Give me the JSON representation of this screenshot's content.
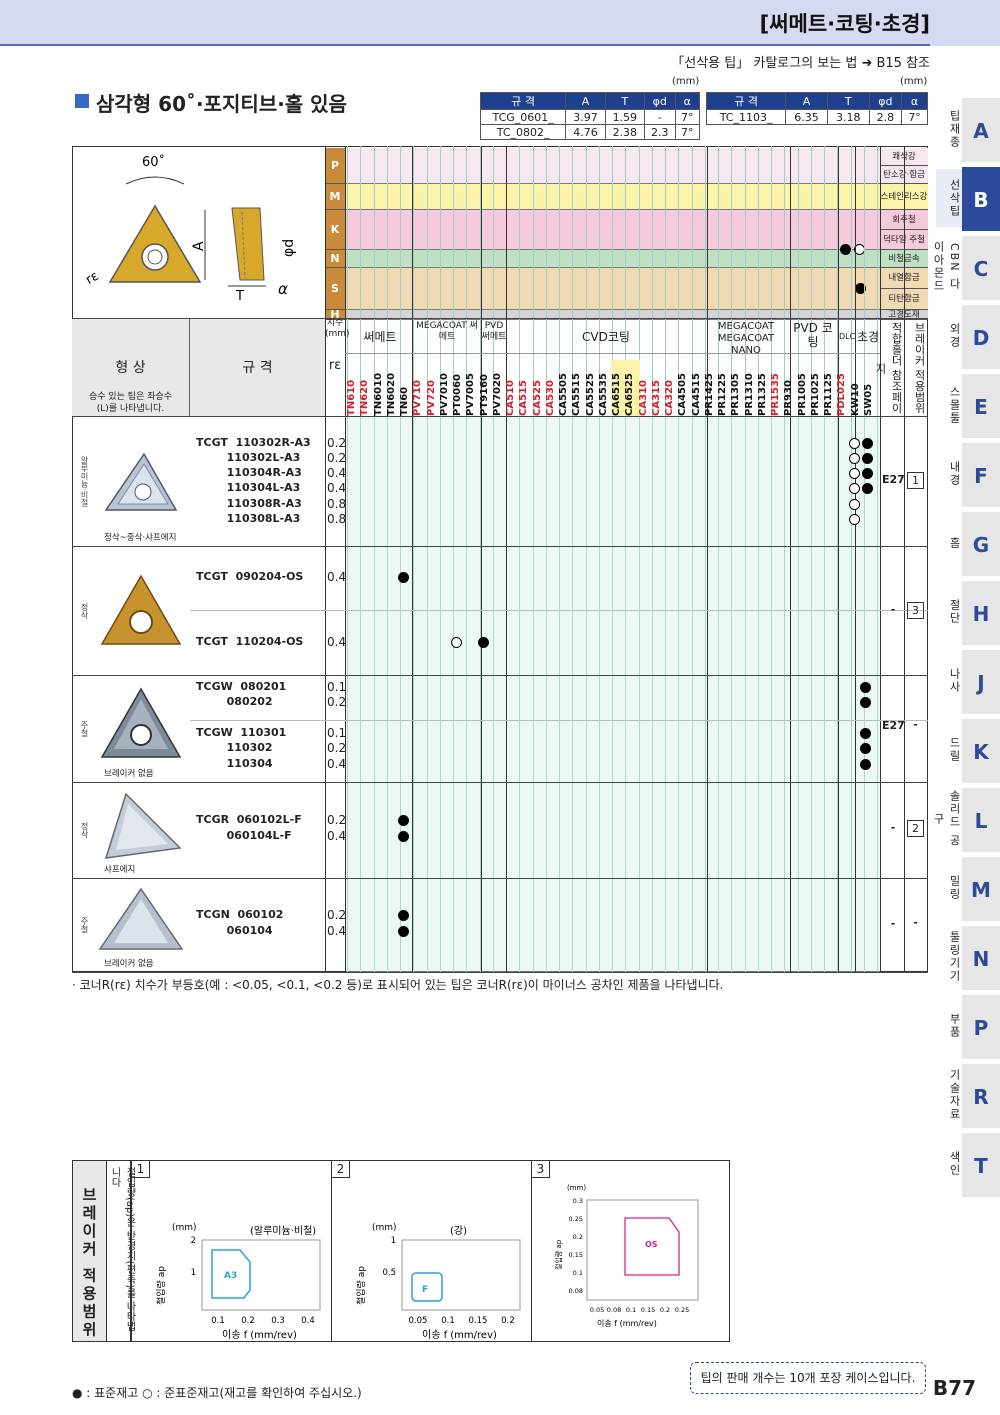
{
  "header": {
    "section": "[써메트·코팅·초경]",
    "ref_note": "「선삭용 팁」 카탈로그의 보는 법 ➜ B15 참조"
  },
  "title": "삼각형 60˚·포지티브·홀 있음",
  "units": "(mm)",
  "spec_headers": [
    "규 격",
    "A",
    "T",
    "φd",
    "α"
  ],
  "spec_left": [
    [
      "TCG_0601_",
      "3.97",
      "1.59",
      "-",
      "7°"
    ],
    [
      "TC_0802_",
      "4.76",
      "2.38",
      "2.3",
      "7°"
    ]
  ],
  "spec_right": [
    [
      "TC_1103_",
      "6.35",
      "3.18",
      "2.8",
      "7°"
    ]
  ],
  "diagram": {
    "angle": "60˚",
    "A": "A",
    "T": "T",
    "d": "φd",
    "alpha": "α",
    "re": "rε"
  },
  "materials": [
    {
      "code": "P",
      "names": [
        "쾌삭강",
        "탄소강·합금강"
      ],
      "color": "#f7e7f0"
    },
    {
      "code": "M",
      "names": [
        "스테인리스강"
      ],
      "color": "#fbf3a8"
    },
    {
      "code": "K",
      "names": [
        "회주철",
        "덕타일 주철"
      ],
      "color": "#f7c9dc"
    },
    {
      "code": "N",
      "names": [
        "비철금속"
      ],
      "color": "#bfe0c3"
    },
    {
      "code": "S",
      "names": [
        "내열합금",
        "티탄합금"
      ],
      "color": "#f1d9b4"
    },
    {
      "code": "H",
      "names": [
        "고경도재"
      ],
      "color": "#d4d4d4"
    }
  ],
  "col_headers": {
    "shape": "형 상",
    "spec": "규 격",
    "shape_note": "승수 있는 팁은 좌승수(L)를 나타냅니다.",
    "dim": "치수 (mm)",
    "re": "rε",
    "cermet": "써메트",
    "megacoat_cermet": "MEGACOAT 써메트",
    "pvd_cermet": "PVD 써메트",
    "cvd": "CVD코팅",
    "megacoat_nano": "MEGACOAT MEGACOAT NANO",
    "pvd": "PVD 코팅",
    "dlc": "DLC",
    "carbide": "초경",
    "holder_ref": "적합홀더 참조페이지",
    "breaker": "브레이커 적용범위"
  },
  "grades": [
    "TN610",
    "TN620",
    "TN6010",
    "TN6020",
    "TN60",
    "PV710",
    "PV720",
    "PV7010",
    "PT0060",
    "PV7005",
    "PT9160",
    "PV7020",
    "CA510",
    "CA515",
    "CA525",
    "CA530",
    "CA5505",
    "CA5515",
    "CA5525",
    "CA5535",
    "CA6515",
    "CA6525",
    "CA310",
    "CA315",
    "CA320",
    "CA4505",
    "CA4515",
    "PR1425",
    "PR1225",
    "PR1305",
    "PR1310",
    "PR1325",
    "PR1535",
    "PR930",
    "PR1005",
    "PR1025",
    "PR1125",
    "PDL025",
    "KW10",
    "SW05"
  ],
  "rows": [
    {
      "group": "알루미늄·비철",
      "caption": "정삭~중삭·샤프에지",
      "ref": "E27",
      "breaker": "1",
      "items": [
        {
          "code": "TCGT  110302R-A3",
          "re": "0.2"
        },
        {
          "code": "        110302L-A3",
          "re": "0.2"
        },
        {
          "code": "        110304R-A3",
          "re": "0.4"
        },
        {
          "code": "        110304L-A3",
          "re": "0.4"
        },
        {
          "code": "        110308R-A3",
          "re": "0.8"
        },
        {
          "code": "        110308L-A3",
          "re": "0.8"
        }
      ]
    },
    {
      "group": "정삭",
      "caption": "",
      "ref": "-",
      "breaker": "3",
      "items": [
        {
          "code": "TCGT  090204-OS",
          "re": "0.4"
        },
        {
          "code": "TCGT  110204-OS",
          "re": "0.4"
        }
      ]
    },
    {
      "group": "주철",
      "caption": "브레이커 없음",
      "ref": "E27",
      "breaker": "-",
      "items": [
        {
          "code": "TCGW  080201",
          "re": "0.1"
        },
        {
          "code": "        080202",
          "re": "0.2"
        },
        {
          "code": "TCGW  110301",
          "re": "0.1"
        },
        {
          "code": "        110302",
          "re": "0.2"
        },
        {
          "code": "        110304",
          "re": "0.4"
        }
      ]
    },
    {
      "group": "정삭",
      "caption": "샤프에지",
      "ref": "-",
      "breaker": "2",
      "items": [
        {
          "code": "TCGR  060102L-F",
          "re": "0.2"
        },
        {
          "code": "        060104L-F",
          "re": "0.4"
        }
      ]
    },
    {
      "group": "주철",
      "caption": "브레이커 없음",
      "ref": "-",
      "breaker": "-",
      "items": [
        {
          "code": "TCGN  060102",
          "re": "0.2"
        },
        {
          "code": "        060104",
          "re": "0.4"
        }
      ]
    }
  ],
  "footnote": "· 코너R(rε) 치수가 부등호(예 : <0.05, <0.1, <0.2 등)로 표시되어 있는 팁은 코너R(rε)이 마이너스 공차인 제품을 나타냅니다.",
  "tabs": [
    {
      "letter": "A",
      "label": "팁재종"
    },
    {
      "letter": "B",
      "label": "선삭팁"
    },
    {
      "letter": "C",
      "label": "CBN 다이아몬드"
    },
    {
      "letter": "D",
      "label": "외경"
    },
    {
      "letter": "E",
      "label": "스몰툴"
    },
    {
      "letter": "F",
      "label": "내경"
    },
    {
      "letter": "G",
      "label": "홈"
    },
    {
      "letter": "H",
      "label": "절단"
    },
    {
      "letter": "J",
      "label": "나사"
    },
    {
      "letter": "K",
      "label": "드릴"
    },
    {
      "letter": "L",
      "label": "솔리드 공구"
    },
    {
      "letter": "M",
      "label": "밀링"
    },
    {
      "letter": "N",
      "label": "툴링기기"
    },
    {
      "letter": "P",
      "label": "부품"
    },
    {
      "letter": "R",
      "label": "기술자료"
    },
    {
      "letter": "T",
      "label": "색인"
    }
  ],
  "breaker_panel": {
    "title": "브레이커 적용범위",
    "side_note": "절입량(ap)은 반경치(편측)를 나타냅니다",
    "panels": [
      {
        "num": "1",
        "material": "(알루미늄·비철)",
        "unit": "(mm)",
        "ylabel": "절입량 ap",
        "xlabel": "이송 f (mm/rev)",
        "region": "A3",
        "xticks": [
          "0.1",
          "0.2",
          "0.3",
          "0.4"
        ],
        "yticks": [
          "2",
          "1"
        ]
      },
      {
        "num": "2",
        "material": "(강)",
        "unit": "(mm)",
        "ylabel": "절입량 ap",
        "xlabel": "이송 f (mm/rev)",
        "region": "F",
        "xticks": [
          "0.05",
          "0.1",
          "0.15",
          "0.2"
        ],
        "yticks": [
          "1",
          "0.5"
        ]
      },
      {
        "num": "3",
        "material": "",
        "unit": "(mm)",
        "ylabel": "절입량 ap",
        "xlabel": "이송 f (mm/rev)",
        "region": "OS",
        "xticks": [
          "0.05",
          "0.08",
          "0.1",
          "0.15",
          "0.2",
          "0.25"
        ],
        "yticks": [
          "0.3",
          "0.25",
          "0.2",
          "0.15",
          "0.1",
          "0.08"
        ]
      }
    ]
  },
  "legend": "● : 표준재고   ○ : 준표준재고(재고를 확인하여 주십시오.)",
  "pack_note": "팁의 판매 개수는 10개 포장 케이스입니다.",
  "page": "B77"
}
